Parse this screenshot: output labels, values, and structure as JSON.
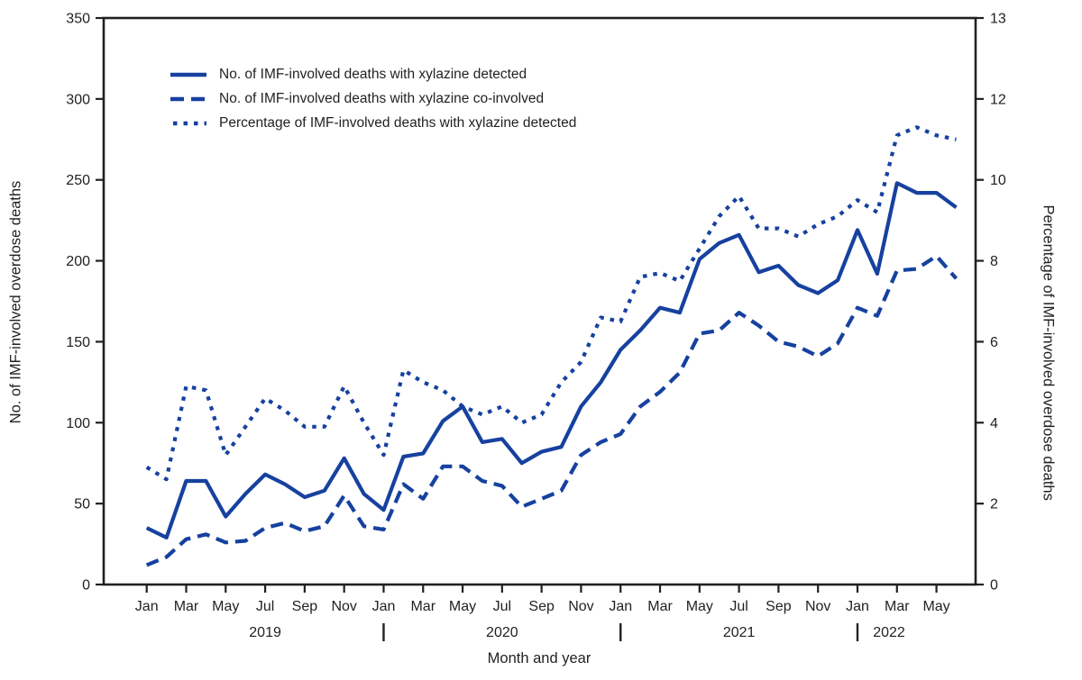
{
  "axes": {
    "y_left_title": "No. of IMF-involved overdose deaths",
    "y_right_title": "Percentage of IMF-involved overdose deaths",
    "x_title": "Month and year"
  },
  "legend": [
    {
      "style": "solid",
      "label": "No. of IMF-involved deaths with xylazine detected"
    },
    {
      "style": "dashed",
      "label": "No. of IMF-involved deaths with xylazine co-involved"
    },
    {
      "style": "dotted",
      "label": "Percentage of IMF-involved deaths with xylazine detected"
    }
  ],
  "colors": {
    "line": "#16419f",
    "axis": "#231f20",
    "text": "#231f20",
    "background": "#ffffff"
  },
  "chart_data": {
    "type": "line",
    "title": "",
    "xlabel": "Month and year",
    "ylabel_left": "No. of IMF-involved overdose deaths",
    "ylabel_right": "Percentage of IMF-involved overdose deaths",
    "y_left_ticks": [
      0,
      50,
      100,
      150,
      200,
      250,
      300,
      350
    ],
    "y_left_range": [
      0,
      350
    ],
    "y_right_ticks": [
      0,
      2,
      4,
      6,
      8,
      10,
      12
    ],
    "y_right_top_label": "13",
    "grid": false,
    "legend_position": "top-left-inside",
    "x": [
      "Jan 2019",
      "Feb 2019",
      "Mar 2019",
      "Apr 2019",
      "May 2019",
      "Jun 2019",
      "Jul 2019",
      "Aug 2019",
      "Sep 2019",
      "Oct 2019",
      "Nov 2019",
      "Dec 2019",
      "Jan 2020",
      "Feb 2020",
      "Mar 2020",
      "Apr 2020",
      "May 2020",
      "Jun 2020",
      "Jul 2020",
      "Aug 2020",
      "Sep 2020",
      "Oct 2020",
      "Nov 2020",
      "Dec 2020",
      "Jan 2021",
      "Feb 2021",
      "Mar 2021",
      "Apr 2021",
      "May 2021",
      "Jun 2021",
      "Jul 2021",
      "Aug 2021",
      "Sep 2021",
      "Oct 2021",
      "Nov 2021",
      "Dec 2021",
      "Jan 2022",
      "Feb 2022",
      "Mar 2022",
      "Apr 2022",
      "May 2022",
      "Jun 2022"
    ],
    "tick_every_other_month_labels": [
      "Jan",
      "Mar",
      "May",
      "Jul",
      "Sep",
      "Nov"
    ],
    "year_labels": [
      {
        "label": "2019",
        "month_index": 6
      },
      {
        "label": "2020",
        "month_index": 18
      },
      {
        "label": "2021",
        "month_index": 30
      },
      {
        "label": "2022",
        "month_index": 37.6
      }
    ],
    "year_separator_month_indices": [
      12,
      24,
      36
    ],
    "series": [
      {
        "name": "No. of IMF-involved deaths with xylazine detected",
        "axis": "left",
        "style": "solid",
        "values": [
          35,
          29,
          64,
          64,
          42,
          56,
          68,
          62,
          54,
          58,
          78,
          56,
          46,
          79,
          81,
          101,
          110,
          88,
          90,
          75,
          82,
          85,
          110,
          125,
          145,
          157,
          171,
          168,
          201,
          211,
          216,
          193,
          197,
          185,
          180,
          188,
          219,
          192,
          248,
          242,
          242,
          233
        ]
      },
      {
        "name": "No. of IMF-involved deaths with xylazine co-involved",
        "axis": "left",
        "style": "dashed",
        "values": [
          12,
          17,
          28,
          31,
          26,
          27,
          35,
          38,
          33,
          36,
          55,
          36,
          34,
          62,
          53,
          73,
          73,
          64,
          61,
          48,
          53,
          58,
          80,
          88,
          93,
          110,
          119,
          131,
          155,
          157,
          168,
          160,
          150,
          147,
          141,
          149,
          171,
          166,
          194,
          195,
          203,
          189
        ]
      },
      {
        "name": "Percentage of IMF-involved deaths with xylazine detected",
        "axis": "right",
        "style": "dotted",
        "values": [
          2.9,
          2.6,
          4.9,
          4.8,
          3.2,
          3.9,
          4.6,
          4.3,
          3.9,
          3.9,
          4.9,
          4.0,
          3.2,
          5.3,
          5.0,
          4.8,
          4.4,
          4.2,
          4.4,
          4.0,
          4.2,
          5.0,
          5.5,
          6.6,
          6.5,
          7.6,
          7.7,
          7.5,
          8.3,
          9.1,
          9.6,
          8.8,
          8.8,
          8.6,
          8.9,
          9.1,
          9.5,
          9.2,
          11.1,
          11.3,
          11.1,
          11.0
        ]
      }
    ]
  }
}
